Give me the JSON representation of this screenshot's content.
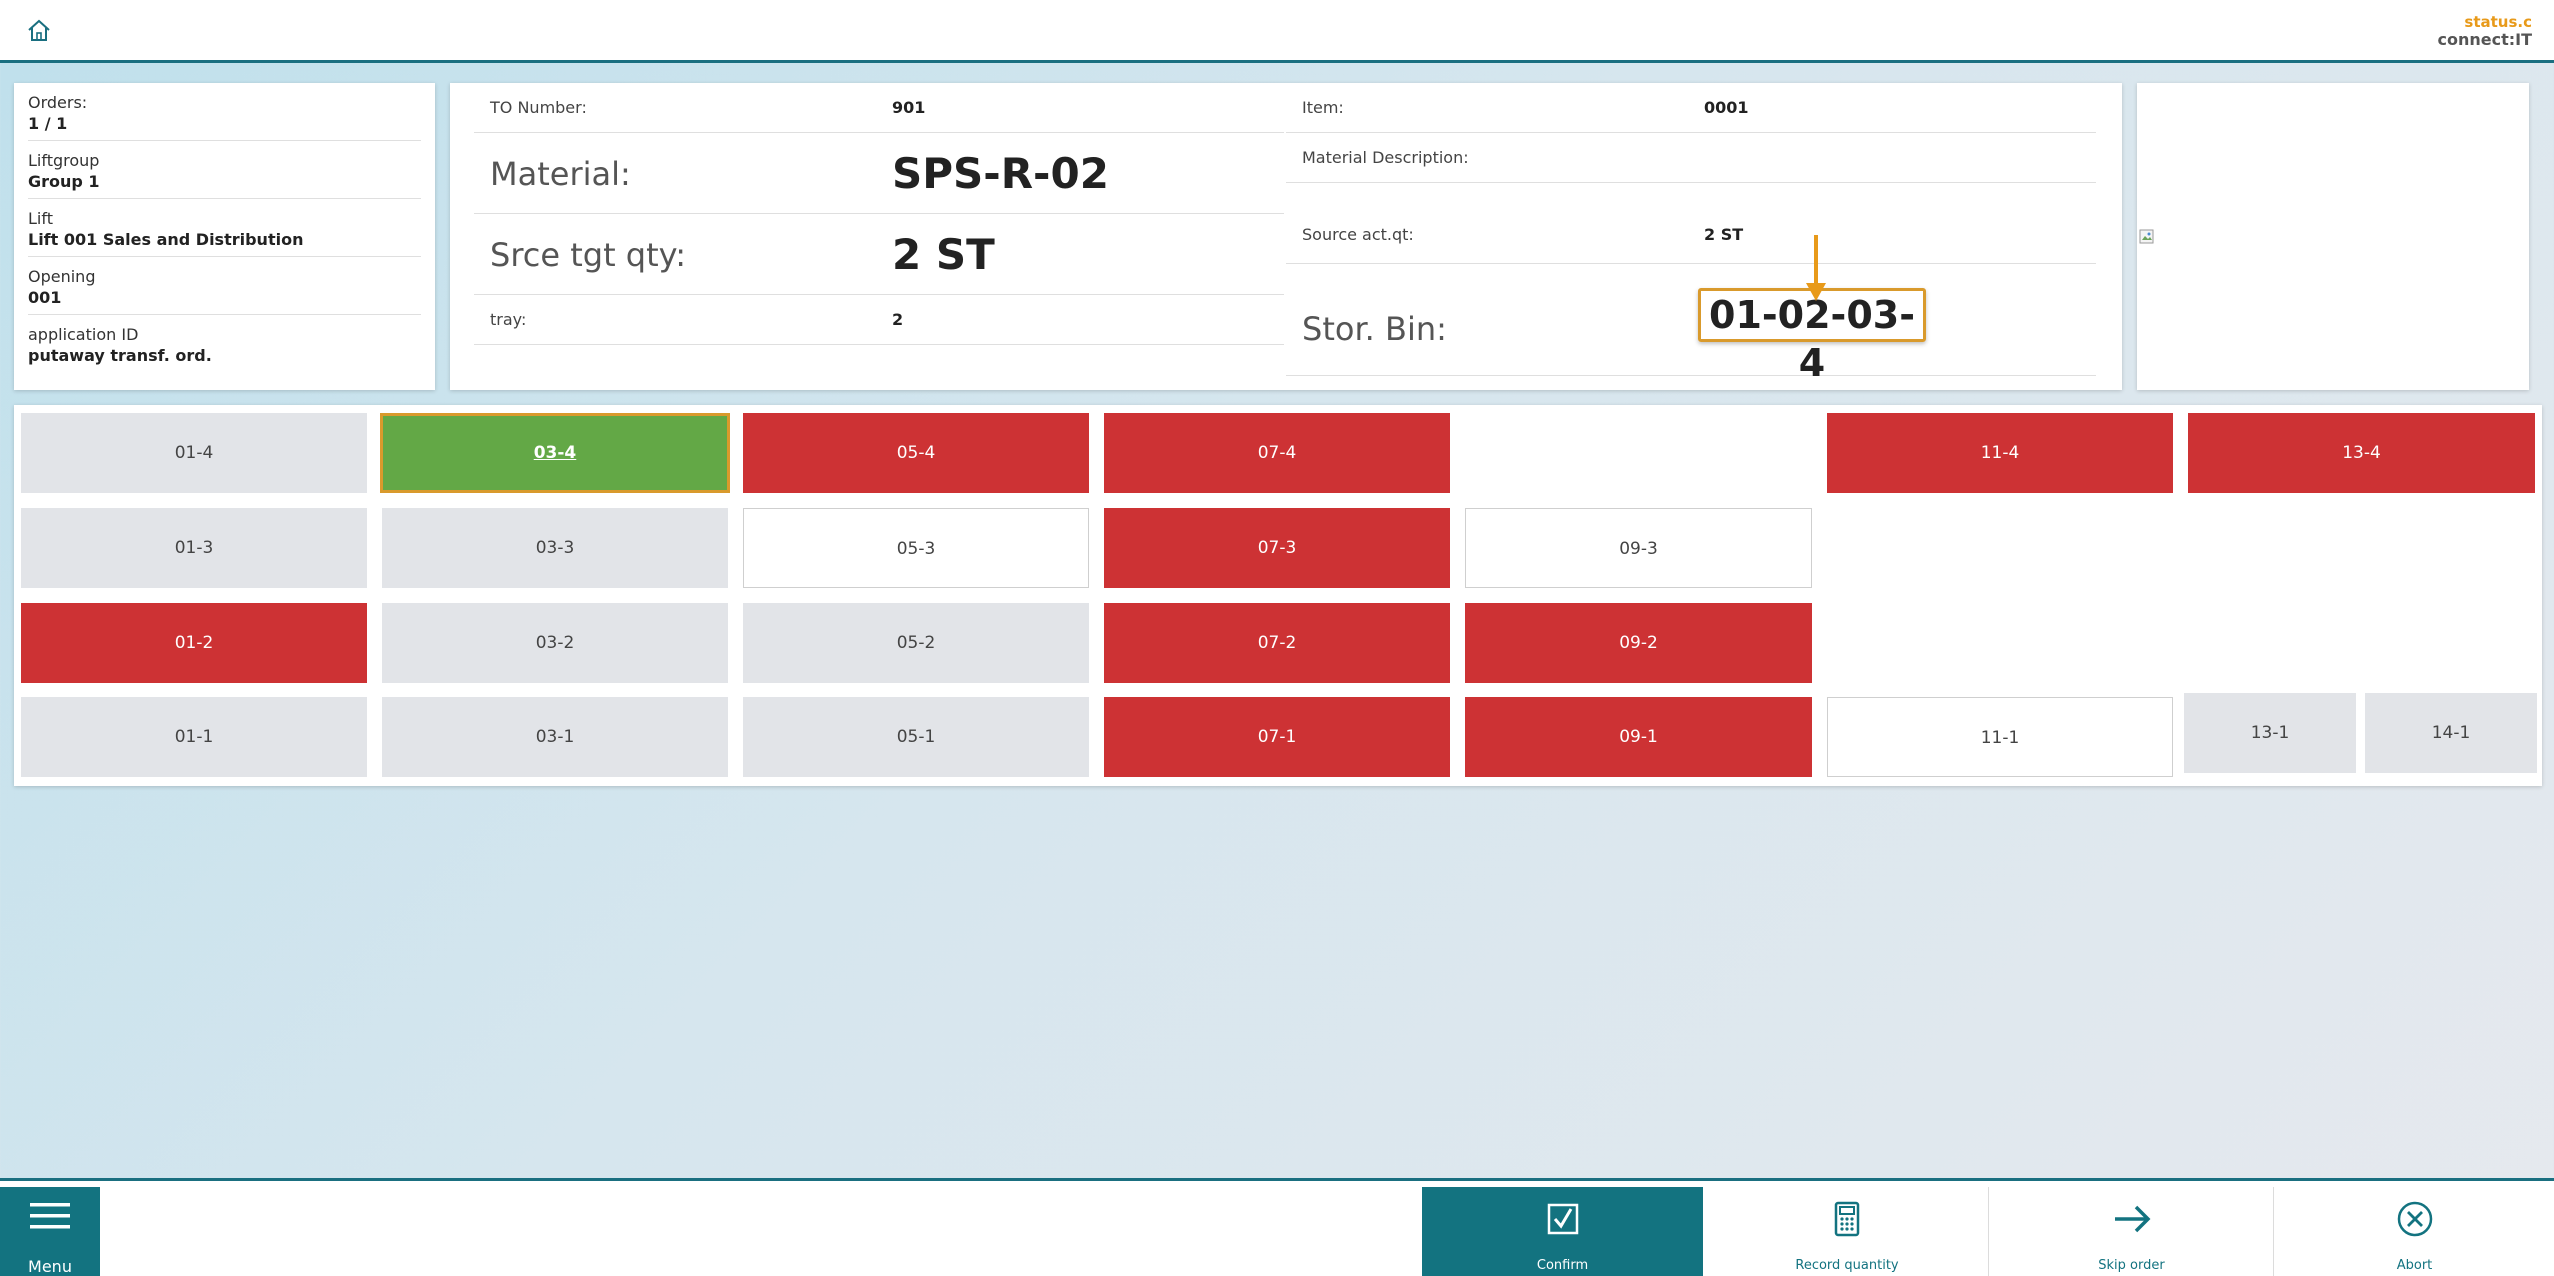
{
  "header": {
    "home_icon": "home-icon",
    "brand_line1": "status.c",
    "brand_line2": "connect:IT"
  },
  "info": [
    {
      "label": "Orders:",
      "value": "1 / 1"
    },
    {
      "label": "Liftgroup",
      "value": "Group 1"
    },
    {
      "label": "Lift",
      "value": "Lift 001 Sales and Distribution"
    },
    {
      "label": "Opening",
      "value": "001"
    },
    {
      "label": "application ID",
      "value": "putaway transf. ord."
    }
  ],
  "order": {
    "to_number_label": "TO Number:",
    "to_number": "901",
    "material_label": "Material:",
    "material": "SPS-R-02",
    "src_tgt_qty_label": "Srce tgt qty:",
    "src_tgt_qty": "2 ST",
    "tray_label": "tray:",
    "tray": "2",
    "item_label": "Item:",
    "item": "0001",
    "material_desc_label": "Material Description:",
    "material_desc": "",
    "source_act_qty_label": "Source act.qt:",
    "source_act_qty": "2 ST",
    "stor_bin_label": "Stor. Bin:",
    "stor_bin": "01-02-03-4"
  },
  "bins": [
    {
      "label": "01-4",
      "state": "grey"
    },
    {
      "label": "03-4",
      "state": "selected"
    },
    {
      "label": "05-4",
      "state": "red"
    },
    {
      "label": "07-4",
      "state": "red"
    },
    {
      "label": "11-4",
      "state": "red"
    },
    {
      "label": "13-4",
      "state": "red"
    },
    {
      "label": "01-3",
      "state": "grey"
    },
    {
      "label": "03-3",
      "state": "grey"
    },
    {
      "label": "05-3",
      "state": "white"
    },
    {
      "label": "07-3",
      "state": "red"
    },
    {
      "label": "09-3",
      "state": "white"
    },
    {
      "label": "01-2",
      "state": "red"
    },
    {
      "label": "03-2",
      "state": "grey"
    },
    {
      "label": "05-2",
      "state": "grey"
    },
    {
      "label": "07-2",
      "state": "red"
    },
    {
      "label": "09-2",
      "state": "red"
    },
    {
      "label": "01-1",
      "state": "grey"
    },
    {
      "label": "03-1",
      "state": "grey"
    },
    {
      "label": "05-1",
      "state": "grey"
    },
    {
      "label": "07-1",
      "state": "red"
    },
    {
      "label": "09-1",
      "state": "red"
    },
    {
      "label": "11-1",
      "state": "white"
    },
    {
      "label": "13-1",
      "state": "grey"
    },
    {
      "label": "14-1",
      "state": "grey"
    }
  ],
  "colors": {
    "accent": "#137380",
    "occupied": "#cd3234",
    "selected": "#63a846",
    "highlight": "#d99a2c",
    "empty": "#e2e4e8"
  },
  "footer": {
    "menu": "Menu",
    "confirm": "Confirm",
    "record_quantity": "Record quantity",
    "skip_order": "Skip order",
    "abort": "Abort"
  }
}
